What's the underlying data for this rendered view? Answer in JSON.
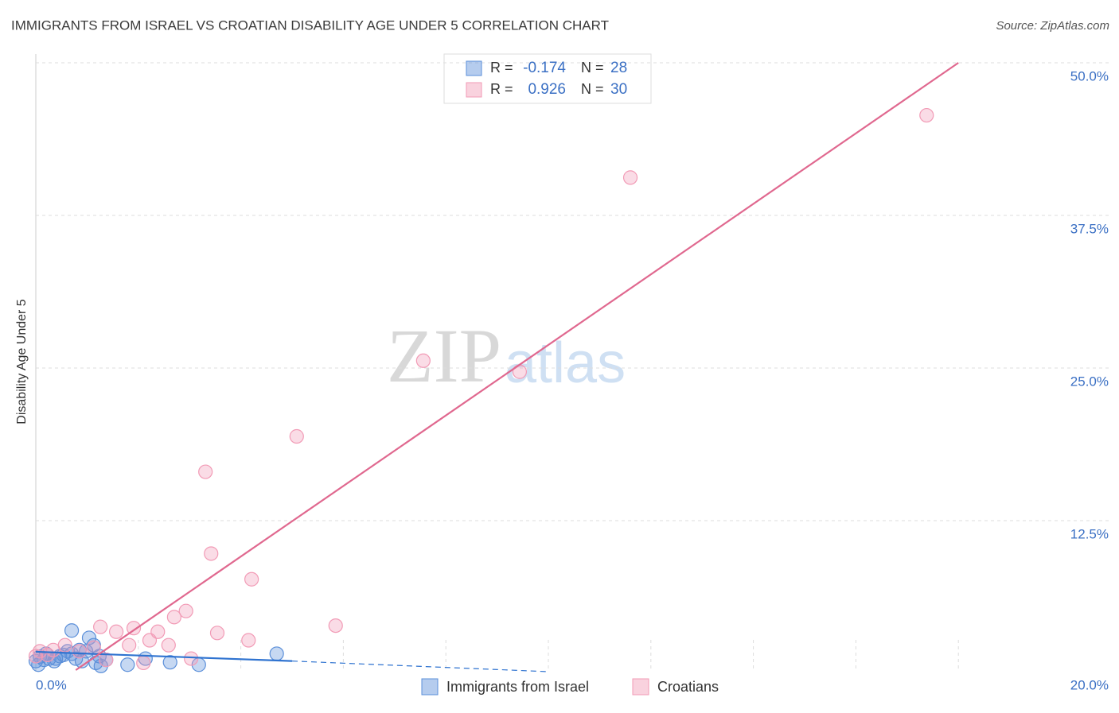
{
  "chart_data": {
    "type": "scatter",
    "title": "IMMIGRANTS FROM ISRAEL VS CROATIAN DISABILITY AGE UNDER 5 CORRELATION CHART",
    "source": "Source: ZipAtlas.com",
    "watermark": [
      "ZIP",
      "atlas"
    ],
    "y_label": "Disability Age Under 5",
    "xlim": [
      0,
      20
    ],
    "ylim": [
      0,
      50
    ],
    "xticks": [
      {
        "value": 0,
        "label": "0.0%"
      },
      {
        "value": 20,
        "label": "20.0%"
      }
    ],
    "xticks_minor": [
      2,
      4,
      6,
      8,
      10,
      12,
      14,
      16,
      18
    ],
    "yticks": [
      {
        "value": 12.5,
        "label": "12.5%"
      },
      {
        "value": 25,
        "label": "25.0%"
      },
      {
        "value": 37.5,
        "label": "37.5%"
      },
      {
        "value": 50,
        "label": "50.0%"
      }
    ],
    "grid": true,
    "stat_labels": {
      "r": "R =",
      "n": "N ="
    },
    "series": [
      {
        "name": "Immigrants from Israel",
        "color": "#5b8fd9",
        "line_color": "#2f73d0",
        "r": "-0.174",
        "n": 28,
        "x": [
          0.08,
          0.16,
          0.26,
          0.36,
          0.47,
          0.62,
          0.7,
          0.78,
          0.9,
          0.98,
          0.7,
          1.04,
          1.13,
          1.17,
          1.27,
          1.37,
          1.79,
          2.14,
          2.62,
          3.18,
          4.7,
          0.0,
          0.2,
          0.85,
          0.39,
          1.24,
          0.54,
          0.05
        ],
        "values": [
          1.37,
          1.1,
          1.2,
          1.0,
          1.4,
          1.8,
          1.6,
          1.2,
          1.0,
          1.8,
          3.5,
          2.9,
          2.3,
          0.85,
          0.6,
          1.1,
          0.7,
          1.2,
          0.9,
          0.7,
          1.6,
          1.0,
          1.6,
          1.9,
          1.2,
          1.4,
          1.5,
          0.7
        ],
        "trendline": {
          "x": [
            0,
            5.0,
            10
          ],
          "y": [
            1.76,
            1.0,
            0.13
          ]
        }
      },
      {
        "name": "Croatians",
        "color": "#f29bb6",
        "line_color": "#e0688f",
        "r": "0.926",
        "n": 30,
        "x": [
          17.38,
          11.6,
          7.56,
          9.44,
          5.09,
          3.31,
          3.42,
          4.21,
          5.85,
          2.93,
          2.7,
          1.26,
          1.57,
          1.91,
          2.38,
          2.22,
          3.54,
          4.15,
          2.59,
          1.82,
          3.03,
          2.1,
          0.57,
          0.34,
          1.13,
          0.08,
          0.23,
          0.85,
          1.37,
          0
        ],
        "values": [
          45.7,
          40.6,
          25.6,
          24.7,
          19.4,
          16.5,
          9.8,
          7.7,
          3.9,
          5.1,
          4.6,
          3.8,
          3.4,
          3.7,
          3.4,
          2.7,
          3.3,
          2.7,
          2.3,
          2.3,
          1.2,
          0.85,
          2.3,
          1.9,
          2.1,
          1.8,
          1.5,
          1.8,
          1.1,
          1.4
        ],
        "trendline": {
          "x": [
            0.78,
            18.0
          ],
          "y": [
            0.26,
            50
          ]
        }
      }
    ]
  }
}
